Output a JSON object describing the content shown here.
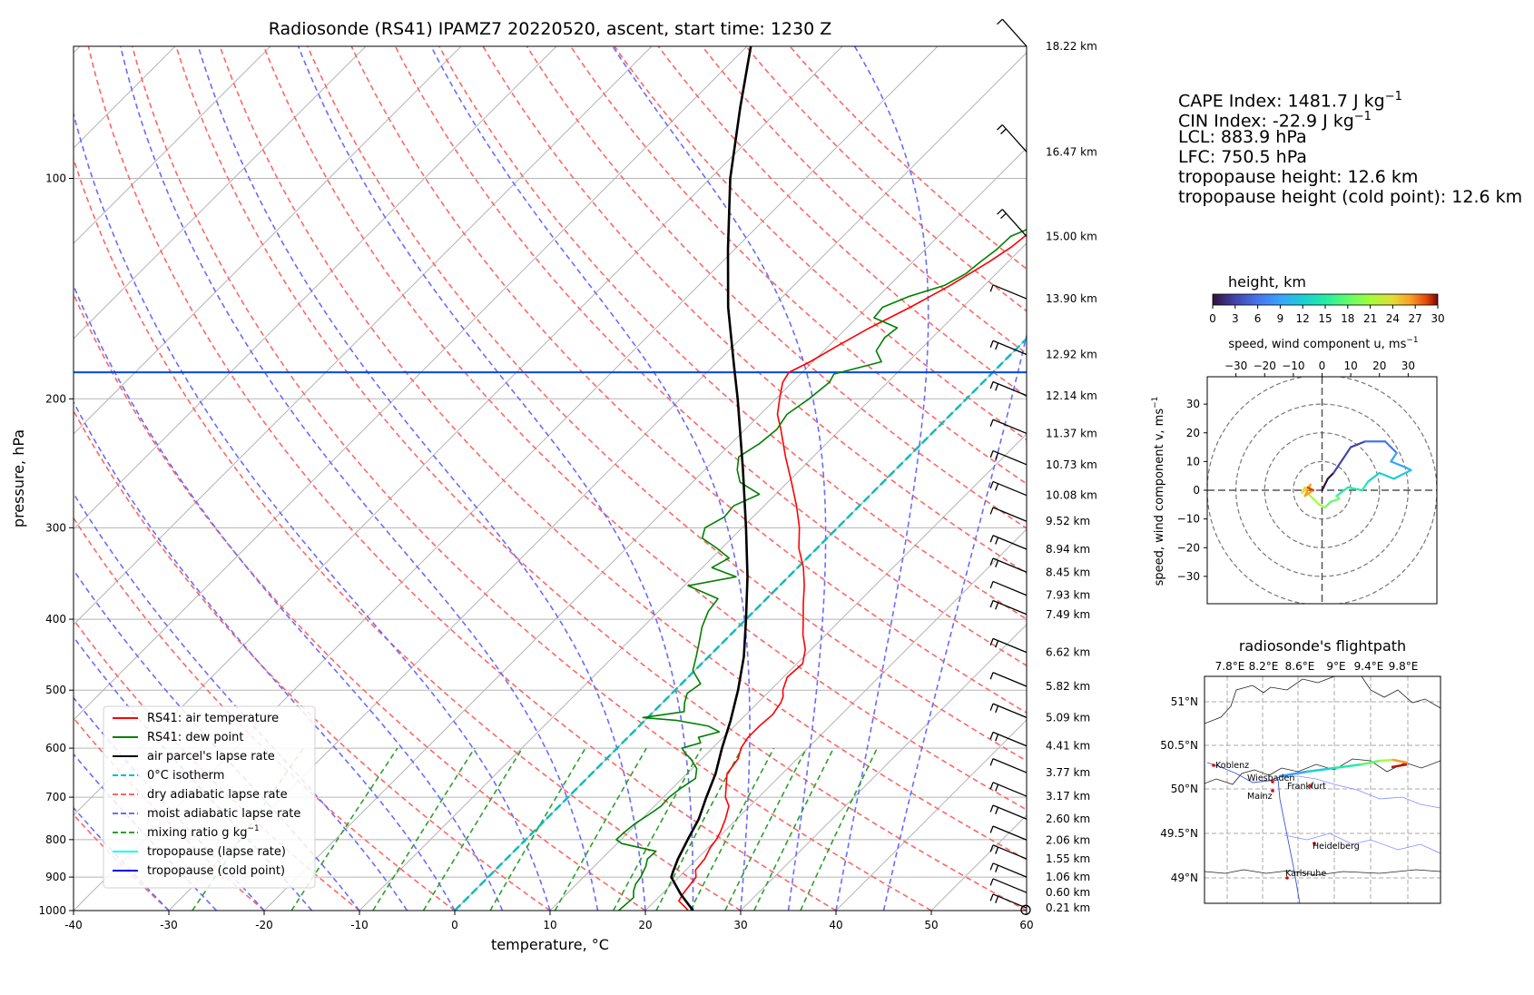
{
  "title": "Radiosonde (RS41) IPAMZ7 20220520, ascent, start time: 1230 Z",
  "indices": {
    "cape_label": "CAPE Index: 1481.7 J kg",
    "cape_sup": "−1",
    "cin_label": "CIN Index: -22.9 J kg",
    "cin_sup": "−1",
    "lcl": "LCL: 883.9 hPa",
    "lfc": "LFC: 750.5 hPa",
    "trop": "tropopause height: 12.6 km",
    "trop_cold": "tropopause height (cold point): 12.6 km"
  },
  "colors": {
    "temperature": "#ff0000",
    "dewpoint": "#008000",
    "parcel": "#000000",
    "isotherm0": "#00bfbf",
    "dry_adiabat": "#ff6666",
    "moist_adiabat": "#6b6bff",
    "mixing": "#2ca02c",
    "trop_lapse": "#00ffff",
    "trop_cold": "#0000dd"
  },
  "skewt": {
    "xlabel": "temperature, °C",
    "ylabel": "pressure, hPa",
    "x_ticks": [
      -40,
      -30,
      -20,
      -10,
      0,
      10,
      20,
      30,
      40,
      50,
      60
    ],
    "p_ticks": [
      100,
      200,
      300,
      400,
      500,
      600,
      700,
      800,
      900,
      1000
    ],
    "p_range": [
      1000,
      66
    ],
    "t_range": [
      -40,
      60
    ],
    "legend": [
      {
        "label": "RS41: air temperature",
        "style": "solid",
        "color": "#ff0000"
      },
      {
        "label": "RS41: dew point",
        "style": "solid",
        "color": "#008000"
      },
      {
        "label": "air parcel's lapse rate",
        "style": "solid",
        "color": "#000000"
      },
      {
        "label": "0°C isotherm",
        "style": "dash",
        "color": "#00bfbf"
      },
      {
        "label": "dry adiabatic lapse rate",
        "style": "dash",
        "color": "#ff6666"
      },
      {
        "label": "moist adiabatic lapse rate",
        "style": "dash",
        "color": "#6b6bff"
      },
      {
        "label": "mixing ratio g kg",
        "sup": "−1",
        "style": "dash",
        "color": "#2ca02c"
      },
      {
        "label": "tropopause (lapse rate)",
        "style": "solid",
        "color": "#00ffff"
      },
      {
        "label": "tropopause (cold point)",
        "style": "solid",
        "color": "#0000dd"
      }
    ],
    "height_labels": [
      {
        "p": 66,
        "label": "18.22 km"
      },
      {
        "p": 92,
        "label": "16.47 km"
      },
      {
        "p": 120,
        "label": "15.00 km"
      },
      {
        "p": 146,
        "label": "13.90 km"
      },
      {
        "p": 174,
        "label": "12.92 km"
      },
      {
        "p": 198,
        "label": "12.14 km"
      },
      {
        "p": 223,
        "label": "11.37 km"
      },
      {
        "p": 246,
        "label": "10.73 km"
      },
      {
        "p": 271,
        "label": "10.08 km"
      },
      {
        "p": 294,
        "label": "9.52 km"
      },
      {
        "p": 321,
        "label": "8.94 km"
      },
      {
        "p": 345,
        "label": "8.45 km"
      },
      {
        "p": 371,
        "label": "7.93 km"
      },
      {
        "p": 394,
        "label": "7.49 km"
      },
      {
        "p": 444,
        "label": "6.62 km"
      },
      {
        "p": 494,
        "label": "5.82 km"
      },
      {
        "p": 545,
        "label": "5.09 km"
      },
      {
        "p": 596,
        "label": "4.41 km"
      },
      {
        "p": 648,
        "label": "3.77 km"
      },
      {
        "p": 698,
        "label": "3.17 km"
      },
      {
        "p": 750,
        "label": "2.60 km"
      },
      {
        "p": 801,
        "label": "2.06 km"
      },
      {
        "p": 850,
        "label": "1.55 km"
      },
      {
        "p": 900,
        "label": "1.06 km"
      },
      {
        "p": 945,
        "label": "0.60 km"
      },
      {
        "p": 992,
        "label": "0.21 km"
      }
    ]
  },
  "chart_data": [
    {
      "type": "line",
      "title": "Radiosonde (RS41) IPAMZ7 20220520, ascent, start time: 1230 Z",
      "xlabel": "temperature, °C",
      "ylabel": "pressure, hPa",
      "xlim": [
        -40,
        60
      ],
      "ylim": [
        1000,
        66
      ],
      "y_scale": "log",
      "series": [
        {
          "name": "RS41: air temperature",
          "points": [
            [
              1000,
              24.5
            ],
            [
              970,
              22.5
            ],
            [
              950,
              22.2
            ],
            [
              900,
              21.8
            ],
            [
              880,
              21.0
            ],
            [
              850,
              20.8
            ],
            [
              820,
              20.2
            ],
            [
              800,
              20.0
            ],
            [
              780,
              19.6
            ],
            [
              750,
              18.8
            ],
            [
              720,
              17.8
            ],
            [
              700,
              16.5
            ],
            [
              680,
              15.6
            ],
            [
              650,
              14.2
            ],
            [
              620,
              13.8
            ],
            [
              600,
              13.0
            ],
            [
              580,
              12.6
            ],
            [
              560,
              12.6
            ],
            [
              540,
              12.8
            ],
            [
              520,
              12.4
            ],
            [
              510,
              12.0
            ],
            [
              500,
              11.3
            ],
            [
              480,
              10.4
            ],
            [
              460,
              10.6
            ],
            [
              440,
              9.4
            ],
            [
              420,
              7.6
            ],
            [
              400,
              6.0
            ],
            [
              380,
              4.3
            ],
            [
              360,
              2.6
            ],
            [
              340,
              0.6
            ],
            [
              320,
              -1.9
            ],
            [
              300,
              -4.0
            ],
            [
              280,
              -6.6
            ],
            [
              260,
              -9.6
            ],
            [
              240,
              -12.9
            ],
            [
              220,
              -16.3
            ],
            [
              210,
              -18.2
            ],
            [
              200,
              -19.6
            ],
            [
              190,
              -21.0
            ],
            [
              184,
              -21.4
            ],
            [
              178,
              -20.3
            ],
            [
              170,
              -19.2
            ],
            [
              160,
              -17.6
            ],
            [
              150,
              -15.5
            ],
            [
              140,
              -13.6
            ],
            [
              130,
              -12.0
            ],
            [
              124,
              -11.2
            ],
            [
              118,
              -10.8
            ],
            [
              112,
              -8.3
            ],
            [
              106,
              -6.2
            ],
            [
              100,
              -4.2
            ],
            [
              95,
              -3.0
            ],
            [
              90,
              -1.5
            ],
            [
              85,
              -0.8
            ],
            [
              80,
              0.3
            ],
            [
              75,
              1.2
            ],
            [
              70,
              2.6
            ],
            [
              66,
              2.6
            ]
          ]
        },
        {
          "name": "RS41: dew point",
          "points": [
            [
              1000,
              17.2
            ],
            [
              960,
              17.4
            ],
            [
              940,
              16.7
            ],
            [
              920,
              16.2
            ],
            [
              900,
              16.0
            ],
            [
              870,
              15.4
            ],
            [
              850,
              14.8
            ],
            [
              830,
              14.9
            ],
            [
              810,
              10.5
            ],
            [
              800,
              9.5
            ],
            [
              780,
              9.6
            ],
            [
              760,
              9.8
            ],
            [
              740,
              10.3
            ],
            [
              720,
              10.7
            ],
            [
              700,
              10.6
            ],
            [
              680,
              10.9
            ],
            [
              660,
              11.4
            ],
            [
              640,
              10.5
            ],
            [
              620,
              8.8
            ],
            [
              610,
              7.7
            ],
            [
              600,
              6.8
            ],
            [
              590,
              8.2
            ],
            [
              580,
              7.4
            ],
            [
              570,
              9.0
            ],
            [
              560,
              7.3
            ],
            [
              550,
              3.4
            ],
            [
              545,
              -0.5
            ],
            [
              535,
              3.2
            ],
            [
              520,
              2.3
            ],
            [
              505,
              1.6
            ],
            [
              490,
              2.0
            ],
            [
              470,
              -0.2
            ],
            [
              450,
              -1.3
            ],
            [
              430,
              -2.5
            ],
            [
              410,
              -3.8
            ],
            [
              390,
              -4.8
            ],
            [
              375,
              -5.1
            ],
            [
              360,
              -9.6
            ],
            [
              350,
              -5.5
            ],
            [
              340,
              -9.0
            ],
            [
              330,
              -8.2
            ],
            [
              320,
              -10.5
            ],
            [
              310,
              -13.1
            ],
            [
              300,
              -13.9
            ],
            [
              290,
              -13.0
            ],
            [
              280,
              -13.2
            ],
            [
              270,
              -11.7
            ],
            [
              260,
              -15.0
            ],
            [
              250,
              -16.6
            ],
            [
              240,
              -17.8
            ],
            [
              230,
              -17.0
            ],
            [
              220,
              -16.7
            ],
            [
              210,
              -17.2
            ],
            [
              200,
              -16.5
            ],
            [
              190,
              -16.1
            ],
            [
              185,
              -16.5
            ],
            [
              178,
              -12.8
            ],
            [
              172,
              -14.5
            ],
            [
              165,
              -15.0
            ],
            [
              160,
              -14.7
            ],
            [
              155,
              -18.2
            ],
            [
              150,
              -18.4
            ],
            [
              145,
              -16.8
            ],
            [
              140,
              -14.2
            ],
            [
              135,
              -13.2
            ],
            [
              130,
              -12.9
            ],
            [
              125,
              -12.5
            ],
            [
              120,
              -12.4
            ],
            [
              115,
              -10.5
            ],
            [
              110,
              -8.0
            ],
            [
              105,
              -6.3
            ],
            [
              100,
              -4.7
            ],
            [
              95,
              -4.3
            ],
            [
              90,
              -3.5
            ],
            [
              85,
              -3.8
            ],
            [
              80,
              -3.1
            ],
            [
              75,
              -1.2
            ],
            [
              70,
              1.0
            ],
            [
              66,
              1.2
            ]
          ]
        },
        {
          "name": "air parcel's lapse rate",
          "points": [
            [
              1000,
              25.0
            ],
            [
              950,
              22.0
            ],
            [
              900,
              19.2
            ],
            [
              884,
              18.8
            ],
            [
              850,
              18.0
            ],
            [
              800,
              17.0
            ],
            [
              750,
              16.0
            ],
            [
              700,
              14.5
            ],
            [
              650,
              13.0
            ],
            [
              600,
              11.0
            ],
            [
              550,
              9.0
            ],
            [
              500,
              6.6
            ],
            [
              450,
              3.7
            ],
            [
              400,
              0.0
            ],
            [
              350,
              -4.3
            ],
            [
              300,
              -9.6
            ],
            [
              250,
              -16.0
            ],
            [
              200,
              -24.0
            ],
            [
              180,
              -27.9
            ],
            [
              150,
              -34.6
            ],
            [
              125,
              -40.7
            ],
            [
              100,
              -47.9
            ],
            [
              80,
              -54.3
            ],
            [
              66,
              -59.6
            ]
          ]
        }
      ]
    },
    {
      "type": "scatter",
      "title": "height, km",
      "xlabel": "speed, wind component u, ms−1",
      "ylabel": "speed, wind component v, ms−1",
      "xlim": [
        -40,
        40
      ],
      "ylim": [
        -40,
        40
      ],
      "colorbar": {
        "label": "height, km",
        "ticks": [
          0,
          3,
          6,
          9,
          12,
          15,
          18,
          21,
          24,
          27,
          30
        ]
      },
      "x_ticks": [
        -30,
        -20,
        -10,
        0,
        10,
        20,
        30
      ],
      "y_ticks": [
        30,
        20,
        10,
        0,
        -10,
        -20,
        -30
      ],
      "points": [
        [
          0,
          0,
          0.2
        ],
        [
          2,
          4,
          1
        ],
        [
          4,
          6,
          2
        ],
        [
          6,
          9,
          3
        ],
        [
          10,
          15,
          4
        ],
        [
          15,
          17,
          5
        ],
        [
          22,
          17,
          6
        ],
        [
          26,
          13,
          8
        ],
        [
          24,
          10,
          9
        ],
        [
          29,
          8,
          10
        ],
        [
          31,
          7,
          11
        ],
        [
          25,
          4,
          12
        ],
        [
          20,
          6,
          13
        ],
        [
          16,
          3,
          14
        ],
        [
          14,
          0,
          15
        ],
        [
          9,
          1,
          16
        ],
        [
          5,
          -2,
          17
        ],
        [
          6,
          -3,
          18
        ],
        [
          3,
          -4,
          19
        ],
        [
          1,
          -6,
          20
        ],
        [
          -1,
          -5,
          21
        ],
        [
          -3,
          -3,
          22
        ],
        [
          -5,
          -1,
          23
        ],
        [
          -6,
          1,
          24
        ],
        [
          -7,
          -1,
          25
        ],
        [
          -4,
          2,
          26
        ],
        [
          -6,
          -2,
          27
        ],
        [
          -3,
          0,
          28
        ],
        [
          -5,
          1,
          29
        ]
      ]
    }
  ],
  "wind_panel": {
    "colorbar_title": "height, km",
    "colorbar_ticks": [
      "0",
      "3",
      "6",
      "9",
      "12",
      "15",
      "18",
      "21",
      "24",
      "27",
      "30"
    ],
    "x_title": "speed, wind component u, ms",
    "x_title_sup": "−1",
    "y_title": "speed, wind component v, ms",
    "y_title_sup": "−1",
    "x_ticks": [
      "−30",
      "−20",
      "−10",
      "0",
      "10",
      "20",
      "30"
    ],
    "y_ticks": [
      "30",
      "20",
      "10",
      "0",
      "−10",
      "−20",
      "−30"
    ]
  },
  "map_panel": {
    "title": "radiosonde's flightpath",
    "lon_ticks": [
      "7.8°E",
      "8.2°E",
      "8.6°E",
      "9°E",
      "9.4°E",
      "9.8°E"
    ],
    "lat_ticks": [
      "51°N",
      "50.5°N",
      "50°N",
      "49.5°N",
      "49°N"
    ],
    "cities": [
      "Koblenz",
      "Wiesbaden",
      "Frankfurt",
      "Mainz",
      "Heidelberg",
      "Karlsruhe"
    ]
  }
}
